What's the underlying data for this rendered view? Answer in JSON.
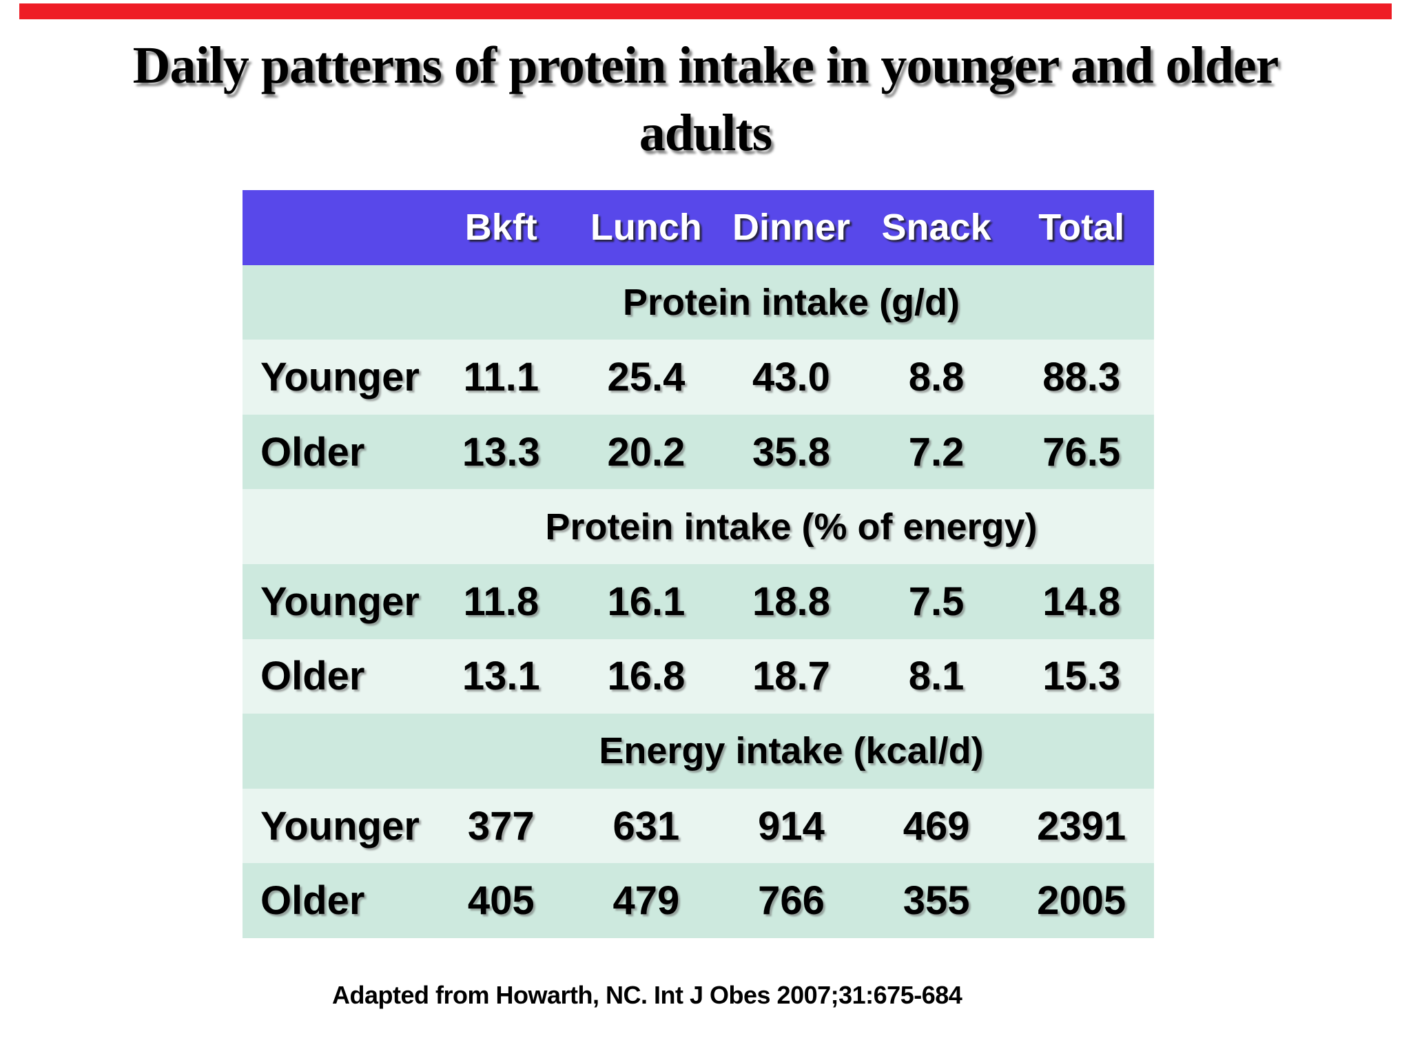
{
  "slide": {
    "accent_bar_color": "#ee1c25",
    "title_line1": "Daily patterns of protein intake in younger and older",
    "title_line2": "adults",
    "footer_citation": "Adapted from Howarth, NC. Int J Obes 2007;31:675-684"
  },
  "table": {
    "header": {
      "bg_color": "#5848ea",
      "text_color": "#ffffff",
      "columns": [
        "",
        "Bkft",
        "Lunch",
        "Dinner",
        "Snack",
        "Total"
      ]
    },
    "row_colors": {
      "dark": "#cde9de",
      "light": "#e9f5f0"
    },
    "sections": [
      {
        "label": "Protein intake (g/d)",
        "rows": [
          {
            "label": "Younger",
            "values": [
              "11.1",
              "25.4",
              "43.0",
              "8.8",
              "88.3"
            ]
          },
          {
            "label": "Older",
            "values": [
              "13.3",
              "20.2",
              "35.8",
              "7.2",
              "76.5"
            ]
          }
        ]
      },
      {
        "label": "Protein intake (% of energy)",
        "rows": [
          {
            "label": "Younger",
            "values": [
              "11.8",
              "16.1",
              "18.8",
              "7.5",
              "14.8"
            ]
          },
          {
            "label": "Older",
            "values": [
              "13.1",
              "16.8",
              "18.7",
              "8.1",
              "15.3"
            ]
          }
        ]
      },
      {
        "label": "Energy intake (kcal/d)",
        "rows": [
          {
            "label": "Younger",
            "values": [
              "377",
              "631",
              "914",
              "469",
              "2391"
            ]
          },
          {
            "label": "Older",
            "values": [
              "405",
              "479",
              "766",
              "355",
              "2005"
            ]
          }
        ]
      }
    ]
  },
  "chart_data": {
    "type": "table",
    "columns": [
      "Bkft",
      "Lunch",
      "Dinner",
      "Snack",
      "Total"
    ],
    "row_groups": [
      {
        "title": "Protein intake (g/d)",
        "rows": [
          {
            "name": "Younger",
            "values": [
              11.1,
              25.4,
              43.0,
              8.8,
              88.3
            ]
          },
          {
            "name": "Older",
            "values": [
              13.3,
              20.2,
              35.8,
              7.2,
              76.5
            ]
          }
        ]
      },
      {
        "title": "Protein intake (% of energy)",
        "rows": [
          {
            "name": "Younger",
            "values": [
              11.8,
              16.1,
              18.8,
              7.5,
              14.8
            ]
          },
          {
            "name": "Older",
            "values": [
              13.1,
              16.8,
              18.7,
              8.1,
              15.3
            ]
          }
        ]
      },
      {
        "title": "Energy intake (kcal/d)",
        "rows": [
          {
            "name": "Younger",
            "values": [
              377,
              631,
              914,
              469,
              2391
            ]
          },
          {
            "name": "Older",
            "values": [
              405,
              479,
              766,
              355,
              2005
            ]
          }
        ]
      }
    ]
  }
}
